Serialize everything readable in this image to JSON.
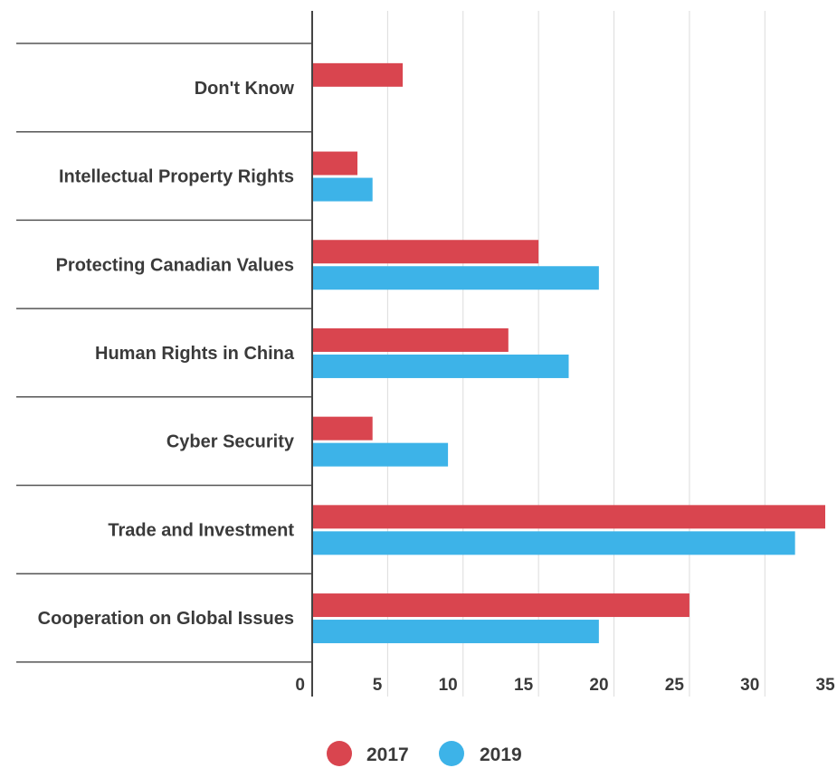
{
  "chart_data": {
    "type": "bar",
    "orientation": "horizontal",
    "categories": [
      "Don't Know",
      "Intellectual Property Rights",
      "Protecting Canadian Values",
      "Human Rights in China",
      "Cyber Security",
      "Trade and Investment",
      "Cooperation on Global Issues"
    ],
    "series": [
      {
        "name": "2017",
        "color": "#d9454f",
        "values": [
          6,
          3,
          15,
          13,
          4,
          34,
          25
        ]
      },
      {
        "name": "2019",
        "color": "#3db3e8",
        "values": [
          null,
          4,
          19,
          17,
          9,
          32,
          19
        ]
      }
    ],
    "x_ticks": [
      "0",
      "5",
      "10",
      "15",
      "20",
      "25",
      "30",
      "35"
    ],
    "xlim": [
      0,
      34
    ],
    "grid": true,
    "legend_position": "bottom-center"
  }
}
